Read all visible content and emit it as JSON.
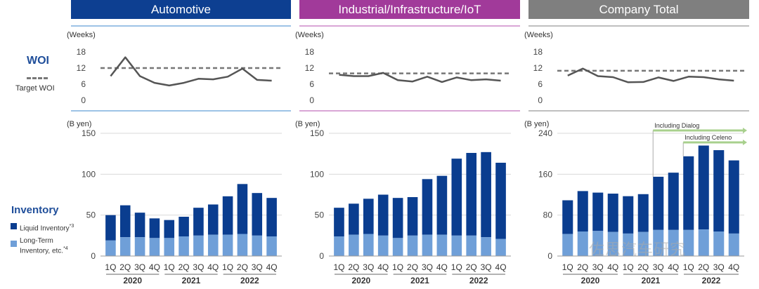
{
  "legend": {
    "woi_title": "WOI",
    "target_label": "Target WOI",
    "inventory_title": "Inventory",
    "liquid_label": "Liquid Inventory",
    "liquid_sup": "*3",
    "longterm_label_1": "Long-Term",
    "longterm_label_2": "Inventory, etc.",
    "longterm_sup": "*4"
  },
  "colors": {
    "liquid": "#0a3d8f",
    "longterm": "#6f9fd8",
    "woi_line": "#555555",
    "target_line": "#777777",
    "grid": "#d9d9d9",
    "dialog_arrow": "#a8d08d"
  },
  "watermark": "佐思汽车研究",
  "chart_data": [
    {
      "type": "bar",
      "panel": "Automotive",
      "title": "Automotive",
      "header_color": "#0d3f91",
      "accent": "#9dc3e6",
      "woi": {
        "unit": "(Weeks)",
        "ylim": [
          0,
          18
        ],
        "ticks": [
          0,
          6,
          12,
          18
        ],
        "values": [
          9,
          16,
          9,
          6.5,
          5.5,
          6.5,
          8,
          7.8,
          8.8,
          11.8,
          7.6,
          7.3
        ],
        "target": 12
      },
      "inventory": {
        "unit": "(B yen)",
        "ylim": [
          0,
          150
        ],
        "ticks": [
          0,
          50,
          100,
          150
        ],
        "total": [
          50,
          62,
          53,
          46,
          44,
          48,
          59,
          63,
          73,
          88,
          77,
          71
        ],
        "long_term": [
          19,
          23,
          23,
          22,
          22,
          24,
          25,
          26,
          26,
          27,
          25,
          24
        ]
      },
      "categories": [
        "1Q",
        "2Q",
        "3Q",
        "4Q",
        "1Q",
        "2Q",
        "3Q",
        "4Q",
        "1Q",
        "2Q",
        "3Q",
        "4Q"
      ],
      "years": [
        "2020",
        "2021",
        "2022"
      ]
    },
    {
      "type": "bar",
      "panel": "Industrial/Infrastructure/IoT",
      "title": "Industrial/Infrastructure/IoT",
      "header_color": "#a13a9a",
      "accent": "#d9a6d6",
      "woi": {
        "unit": "(Weeks)",
        "ylim": [
          0,
          18
        ],
        "ticks": [
          0,
          6,
          12,
          18
        ],
        "values": [
          9.5,
          9,
          9,
          10.2,
          7.5,
          7,
          8.8,
          6.8,
          8.5,
          7.5,
          7.8,
          7.3
        ],
        "target": 10
      },
      "inventory": {
        "unit": "(B yen)",
        "ylim": [
          0,
          150
        ],
        "ticks": [
          0,
          50,
          100,
          150
        ],
        "total": [
          59,
          64,
          70,
          75,
          71,
          72,
          94,
          98,
          119,
          126,
          127,
          114
        ],
        "long_term": [
          24,
          26,
          27,
          25,
          22,
          25,
          26,
          26,
          25,
          25,
          23,
          21
        ]
      },
      "categories": [
        "1Q",
        "2Q",
        "3Q",
        "4Q",
        "1Q",
        "2Q",
        "3Q",
        "4Q",
        "1Q",
        "2Q",
        "3Q",
        "4Q"
      ],
      "years": [
        "2020",
        "2021",
        "2022"
      ]
    },
    {
      "type": "bar",
      "panel": "Company Total",
      "title": "Company Total",
      "header_color": "#7f7f7f",
      "accent": "#bfbfbf",
      "woi": {
        "unit": "(Weeks)",
        "ylim": [
          0,
          18
        ],
        "ticks": [
          0,
          6,
          12,
          18
        ],
        "values": [
          9.2,
          11.8,
          9,
          8.6,
          6.7,
          6.8,
          8.5,
          7.2,
          8.8,
          8.6,
          7.8,
          7.3
        ],
        "target": 11
      },
      "inventory": {
        "unit": "(B yen)",
        "ylim": [
          0,
          240
        ],
        "ticks": [
          0,
          80,
          160,
          240
        ],
        "total": [
          109,
          127,
          124,
          122,
          117,
          121,
          155,
          163,
          195,
          216,
          207,
          187
        ],
        "long_term": [
          43,
          48,
          49,
          47,
          44,
          47,
          51,
          51,
          51,
          52,
          48,
          44
        ]
      },
      "categories": [
        "1Q",
        "2Q",
        "3Q",
        "4Q",
        "1Q",
        "2Q",
        "3Q",
        "4Q",
        "1Q",
        "2Q",
        "3Q",
        "4Q"
      ],
      "years": [
        "2020",
        "2021",
        "2022"
      ],
      "annotations": [
        {
          "label": "Including Dialog",
          "from_index": 6
        },
        {
          "label": "Including Celeno",
          "from_index": 8
        }
      ]
    }
  ]
}
